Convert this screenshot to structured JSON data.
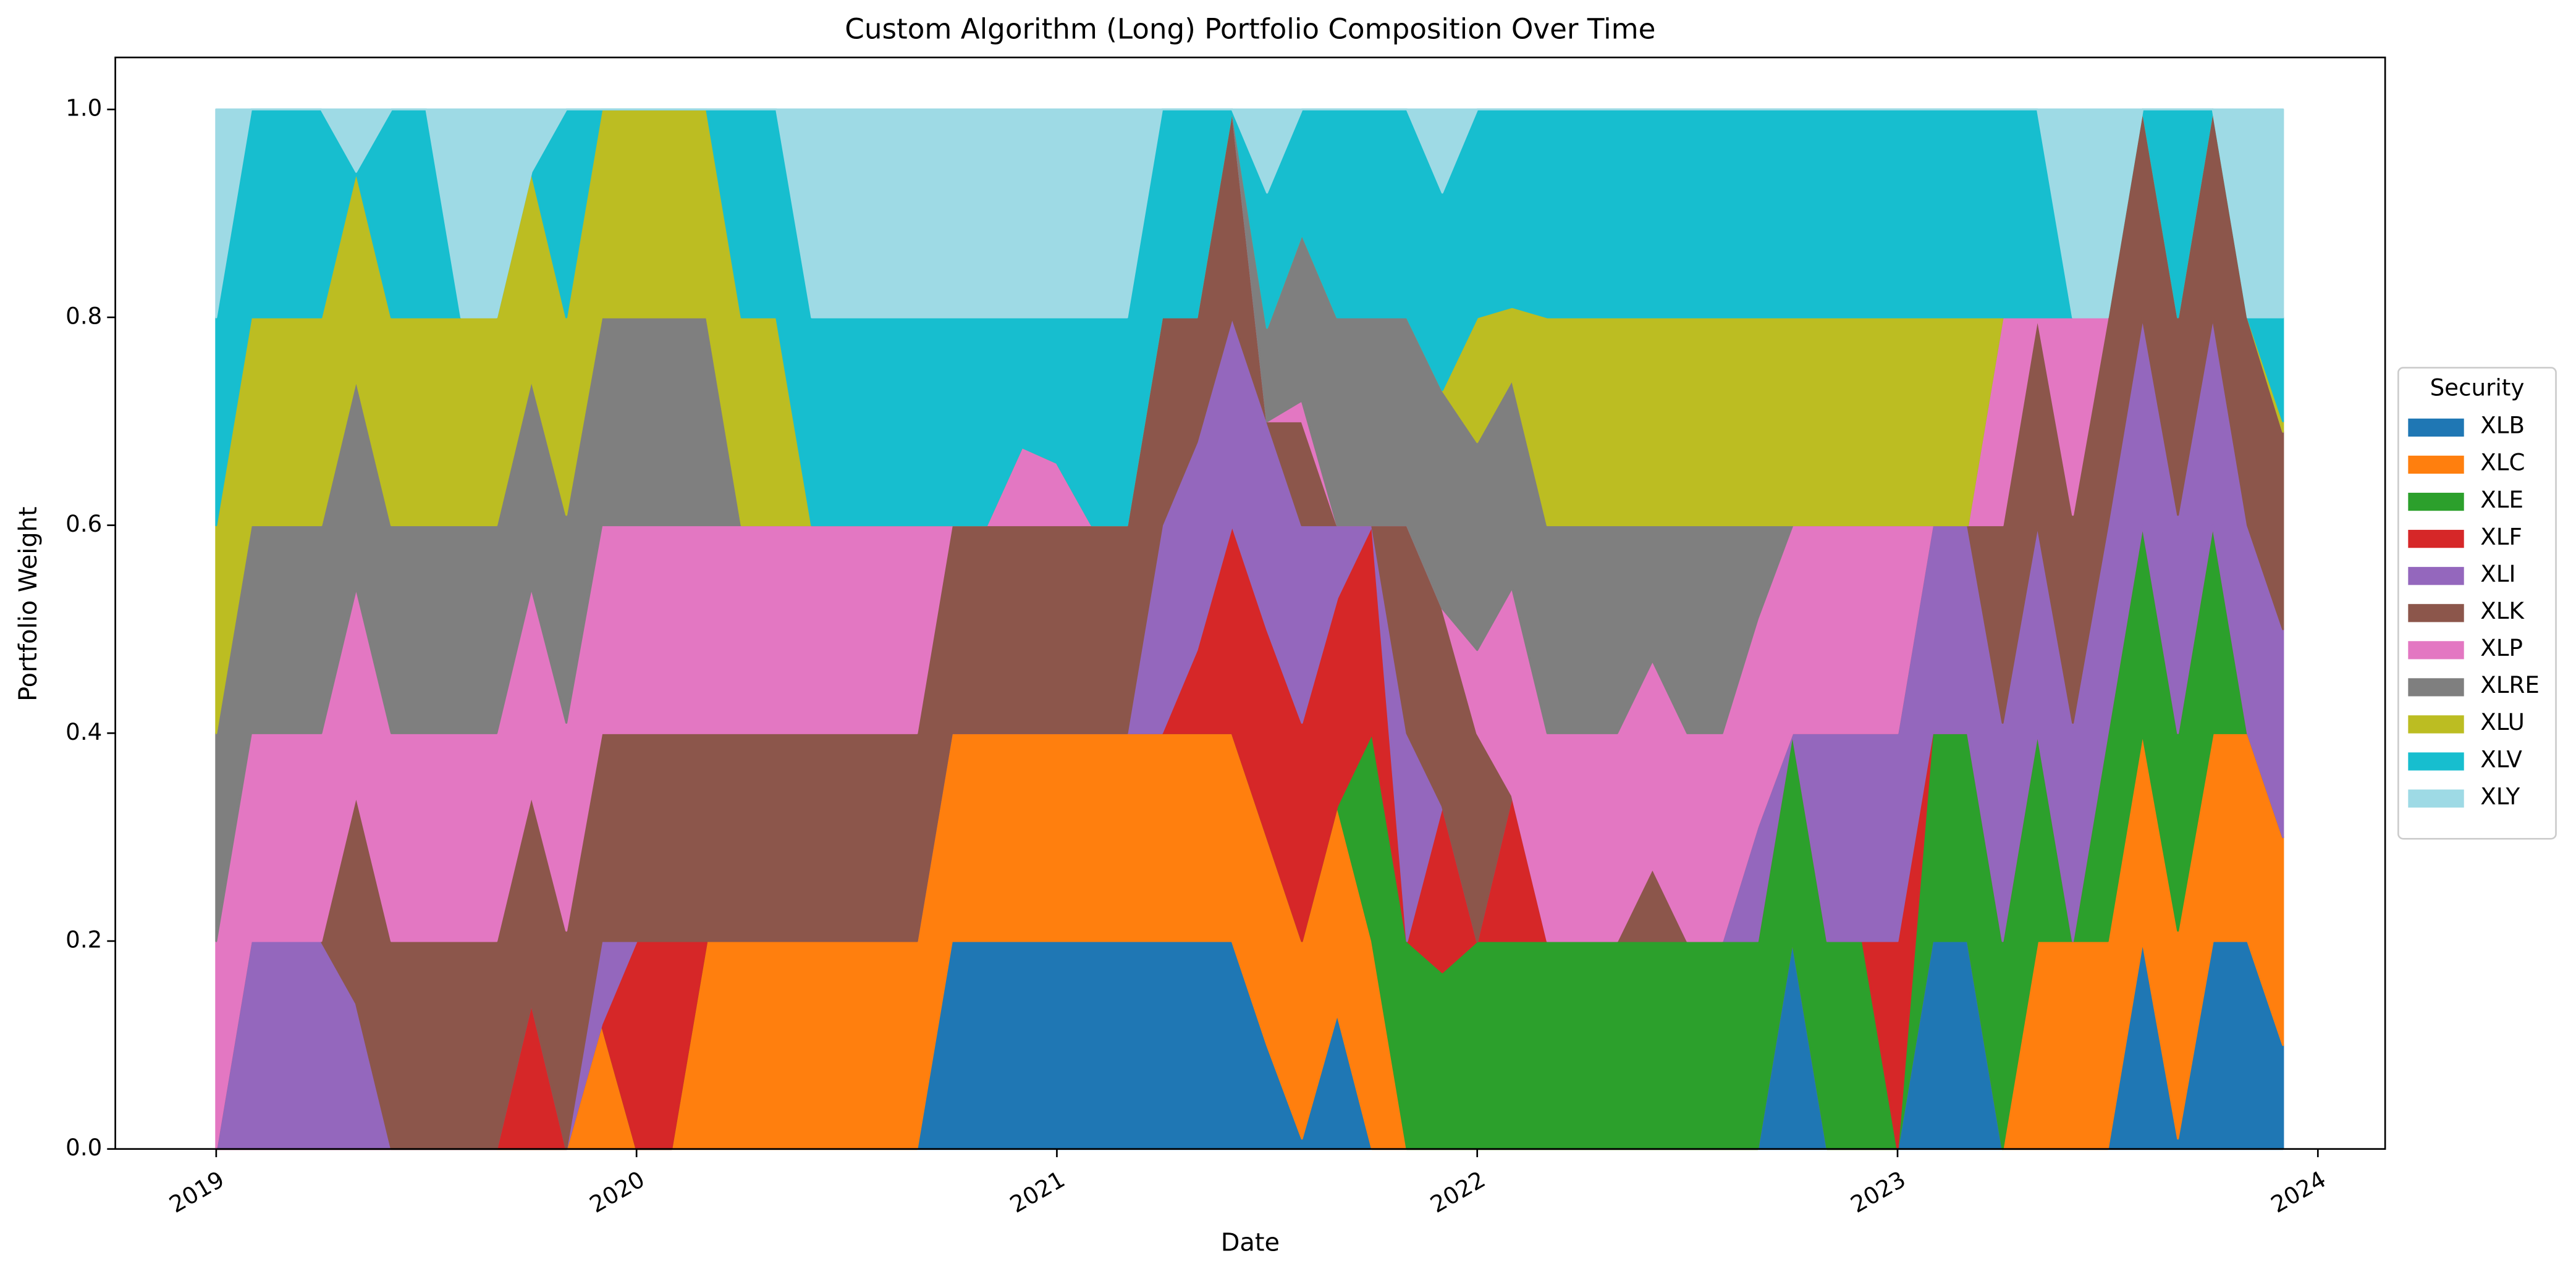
{
  "chart_data": {
    "type": "stacked-area",
    "title": "Custom Algorithm (Long) Portfolio Composition Over Time",
    "x_label": "Date",
    "y_label": "Portfolio Weight",
    "legend_title": "Security",
    "legend": "right",
    "x": [
      2019,
      2019.083,
      2019.167,
      2019.25,
      2019.333,
      2019.417,
      2019.5,
      2019.583,
      2019.667,
      2019.75,
      2019.833,
      2019.917,
      2020,
      2020.083,
      2020.167,
      2020.25,
      2020.333,
      2020.417,
      2020.5,
      2020.583,
      2020.667,
      2020.75,
      2020.833,
      2020.917,
      2021,
      2021.083,
      2021.167,
      2021.25,
      2021.333,
      2021.417,
      2021.5,
      2021.583,
      2021.667,
      2021.75,
      2021.833,
      2021.917,
      2022,
      2022.083,
      2022.167,
      2022.25,
      2022.333,
      2022.417,
      2022.5,
      2022.583,
      2022.667,
      2022.75,
      2022.833,
      2022.917,
      2023,
      2023.083,
      2023.167,
      2023.25,
      2023.333,
      2023.417,
      2023.5,
      2023.583,
      2023.667,
      2023.75,
      2023.833,
      2023.917
    ],
    "xlim": [
      2018.76,
      2024.16
    ],
    "xticks": [
      2019,
      2020,
      2021,
      2022,
      2023,
      2024
    ],
    "ylim": [
      0,
      1.05
    ],
    "yticks": [
      {
        "value": 0,
        "label": "0.0"
      },
      0.2,
      0.4,
      0.6,
      0.8,
      {
        "value": 1,
        "label": "1.0"
      }
    ],
    "series": [
      {
        "name": "XLB",
        "color": "#1f77b4",
        "values": [
          0,
          0,
          0,
          0,
          0,
          0,
          0,
          0,
          0,
          0,
          0,
          0,
          0,
          0,
          0,
          0,
          0,
          0,
          0,
          0,
          0,
          0.2,
          0.2,
          0.2,
          0.2,
          0.2,
          0.2,
          0.2,
          0.2,
          0.2,
          0.1,
          0.01,
          0.13,
          0,
          0,
          0,
          0,
          0,
          0,
          0,
          0,
          0,
          0,
          0,
          0,
          0.2,
          0,
          0,
          0,
          0.2,
          0.2,
          0,
          0,
          0,
          0,
          0.2,
          0.01,
          0.2,
          0.2,
          0.1
        ]
      },
      {
        "name": "XLC",
        "color": "#ff7f0e",
        "values": [
          0,
          0,
          0,
          0,
          0,
          0,
          0,
          0,
          0,
          0,
          0,
          0.12,
          0,
          0,
          0.2,
          0.2,
          0.2,
          0.2,
          0.2,
          0.2,
          0.2,
          0.2,
          0.2,
          0.2,
          0.2,
          0.2,
          0.2,
          0.2,
          0.2,
          0.2,
          0.2,
          0.19,
          0.2,
          0.2,
          0,
          0,
          0,
          0,
          0,
          0,
          0,
          0,
          0,
          0,
          0,
          0,
          0,
          0,
          0,
          0,
          0,
          0,
          0.2,
          0.2,
          0.2,
          0.2,
          0.2,
          0.2,
          0.2,
          0.2
        ]
      },
      {
        "name": "XLE",
        "color": "#2ca02c",
        "values": [
          0,
          0,
          0,
          0,
          0,
          0,
          0,
          0,
          0,
          0,
          0,
          0,
          0,
          0,
          0,
          0,
          0,
          0,
          0,
          0,
          0,
          0,
          0,
          0,
          0,
          0,
          0,
          0,
          0,
          0,
          0,
          0,
          0,
          0.2,
          0.2,
          0.17,
          0.2,
          0.2,
          0.2,
          0.2,
          0.2,
          0.2,
          0.2,
          0.2,
          0.2,
          0.2,
          0.2,
          0.2,
          0,
          0.2,
          0.2,
          0.2,
          0.2,
          0,
          0.2,
          0.2,
          0.19,
          0.2,
          0,
          0
        ]
      },
      {
        "name": "XLF",
        "color": "#d62728",
        "values": [
          0,
          0,
          0,
          0,
          0,
          0,
          0,
          0,
          0,
          0.14,
          0,
          0,
          0.2,
          0.2,
          0,
          0,
          0,
          0,
          0,
          0,
          0,
          0,
          0,
          0,
          0,
          0,
          0,
          0,
          0.08,
          0.2,
          0.2,
          0.21,
          0.2,
          0.2,
          0,
          0.16,
          0,
          0.14,
          0,
          0,
          0,
          0,
          0,
          0,
          0,
          0,
          0,
          0,
          0.2,
          0,
          0,
          0,
          0,
          0,
          0,
          0,
          0,
          0,
          0,
          0
        ]
      },
      {
        "name": "XLI",
        "color": "#9467bd",
        "values": [
          0,
          0.2,
          0.2,
          0.2,
          0.14,
          0,
          0,
          0,
          0,
          0,
          0,
          0.08,
          0,
          0,
          0,
          0,
          0,
          0,
          0,
          0,
          0,
          0,
          0,
          0,
          0,
          0,
          0,
          0.2,
          0.2,
          0.2,
          0.2,
          0.19,
          0.07,
          0,
          0.2,
          0,
          0,
          0,
          0,
          0,
          0,
          0,
          0,
          0,
          0.11,
          0,
          0.2,
          0.2,
          0.2,
          0.2,
          0.2,
          0.21,
          0.2,
          0.21,
          0.2,
          0.2,
          0.21,
          0.2,
          0.2,
          0.2
        ]
      },
      {
        "name": "XLK",
        "color": "#8c564b",
        "values": [
          0,
          0,
          0,
          0,
          0.2,
          0.2,
          0.2,
          0.2,
          0.2,
          0.2,
          0.21,
          0.2,
          0.2,
          0.2,
          0.2,
          0.2,
          0.2,
          0.2,
          0.2,
          0.2,
          0.2,
          0.2,
          0.2,
          0.2,
          0.2,
          0.2,
          0.2,
          0.2,
          0.12,
          0.2,
          0,
          0.1,
          0,
          0,
          0.2,
          0.19,
          0.2,
          0,
          0,
          0,
          0,
          0.07,
          0,
          0,
          0,
          0,
          0,
          0,
          0,
          0,
          0,
          0.19,
          0.2,
          0.2,
          0.2,
          0.2,
          0.19,
          0.2,
          0.2,
          0.19
        ]
      },
      {
        "name": "XLP",
        "color": "#e377c2",
        "values": [
          0.2,
          0.2,
          0.2,
          0.2,
          0.2,
          0.2,
          0.2,
          0.2,
          0.2,
          0.2,
          0.2,
          0.2,
          0.2,
          0.2,
          0.2,
          0.2,
          0.2,
          0.2,
          0.2,
          0.2,
          0.2,
          0,
          0,
          0.075,
          0.06,
          0,
          0,
          0,
          0,
          0,
          0,
          0.02,
          0,
          0,
          0,
          0,
          0.08,
          0.2,
          0.2,
          0.2,
          0.2,
          0.2,
          0.2,
          0.2,
          0.2,
          0.2,
          0.2,
          0.2,
          0.2,
          0,
          0,
          0.2,
          0,
          0.19,
          0,
          0,
          0,
          0,
          0,
          0
        ]
      },
      {
        "name": "XLRE",
        "color": "#7f7f7f",
        "values": [
          0.2,
          0.2,
          0.2,
          0.2,
          0.2,
          0.2,
          0.2,
          0.2,
          0.2,
          0.2,
          0.2,
          0.2,
          0.2,
          0.2,
          0.2,
          0,
          0,
          0,
          0,
          0,
          0,
          0,
          0,
          0,
          0,
          0,
          0,
          0,
          0,
          0,
          0.09,
          0.16,
          0.2,
          0.2,
          0.2,
          0.21,
          0.2,
          0.2,
          0.2,
          0.2,
          0.2,
          0.13,
          0.2,
          0.2,
          0.09,
          0,
          0,
          0,
          0,
          0,
          0,
          0,
          0,
          0,
          0,
          0,
          0,
          0,
          0,
          0
        ]
      },
      {
        "name": "XLU",
        "color": "#bcbd22",
        "values": [
          0.2,
          0.2,
          0.2,
          0.2,
          0.2,
          0.2,
          0.2,
          0.2,
          0.2,
          0.2,
          0.19,
          0.2,
          0.2,
          0.2,
          0.2,
          0.2,
          0.2,
          0,
          0,
          0,
          0,
          0,
          0,
          0,
          0,
          0,
          0,
          0,
          0,
          0,
          0,
          0,
          0,
          0,
          0,
          0,
          0.12,
          0.07,
          0.2,
          0.2,
          0.2,
          0.2,
          0.2,
          0.2,
          0.2,
          0.2,
          0.2,
          0.2,
          0.2,
          0.2,
          0.2,
          0,
          0,
          0,
          0,
          0,
          0,
          0,
          0,
          0.01
        ]
      },
      {
        "name": "XLV",
        "color": "#17becf",
        "values": [
          0.2,
          0.2,
          0.2,
          0.2,
          0,
          0.2,
          0.2,
          0,
          0,
          0,
          0.2,
          0,
          0,
          0,
          0,
          0.2,
          0.2,
          0.2,
          0.2,
          0.2,
          0.2,
          0.2,
          0.2,
          0.125,
          0.14,
          0.2,
          0.2,
          0.2,
          0.2,
          0,
          0.13,
          0.12,
          0.2,
          0.2,
          0.2,
          0.19,
          0.2,
          0.19,
          0.2,
          0.2,
          0.2,
          0.2,
          0.2,
          0.2,
          0.2,
          0.2,
          0.2,
          0.2,
          0.2,
          0.2,
          0.2,
          0.2,
          0.2,
          0,
          0,
          0,
          0.2,
          0,
          0,
          0.1
        ]
      },
      {
        "name": "XLY",
        "color": "#9edae5",
        "values": [
          0.2,
          0,
          0,
          0,
          0.06,
          0,
          0,
          0.2,
          0.2,
          0.06,
          0,
          0,
          0,
          0,
          0,
          0,
          0,
          0.2,
          0.2,
          0.2,
          0.2,
          0.2,
          0.2,
          0.2,
          0.2,
          0.2,
          0.2,
          0,
          0,
          0,
          0.08,
          0,
          0,
          0,
          0,
          0.08,
          0,
          0,
          0,
          0,
          0,
          0,
          0,
          0,
          0,
          0,
          0,
          0,
          0,
          0,
          0,
          0,
          0,
          0.2,
          0.2,
          0,
          0,
          0,
          0.2,
          0.2
        ]
      }
    ]
  }
}
